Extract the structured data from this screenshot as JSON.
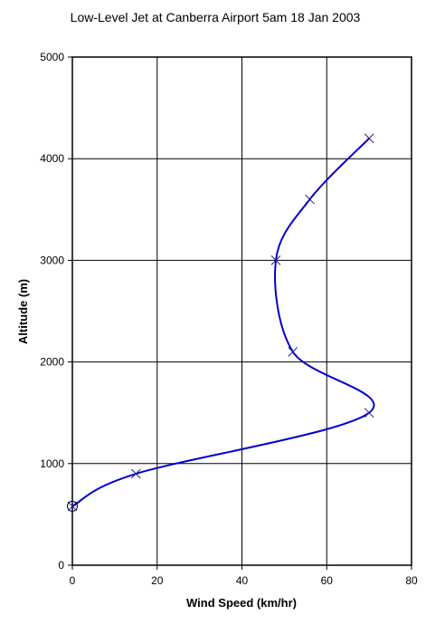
{
  "chart_data": {
    "type": "line",
    "title": "Low-Level Jet at Canberra Airport 5am 18 Jan 2003",
    "xlabel": "Wind Speed (km/hr)",
    "ylabel": "Altitude (m)",
    "xlim": [
      0,
      80
    ],
    "ylim": [
      0,
      5000
    ],
    "x_ticks": [
      "0",
      "20",
      "40",
      "60",
      "80"
    ],
    "y_ticks": [
      "0",
      "1000",
      "2000",
      "3000",
      "4000",
      "5000"
    ],
    "grid": true,
    "legend": "none",
    "series": [
      {
        "color": "#0000cc",
        "marker_color": "#1a1a99",
        "points": [
          {
            "x": 0,
            "y": 580
          },
          {
            "x": 15,
            "y": 900
          },
          {
            "x": 70,
            "y": 1500
          },
          {
            "x": 52,
            "y": 2100
          },
          {
            "x": 48,
            "y": 3000
          },
          {
            "x": 56,
            "y": 3600
          },
          {
            "x": 70,
            "y": 4200
          }
        ]
      }
    ]
  }
}
